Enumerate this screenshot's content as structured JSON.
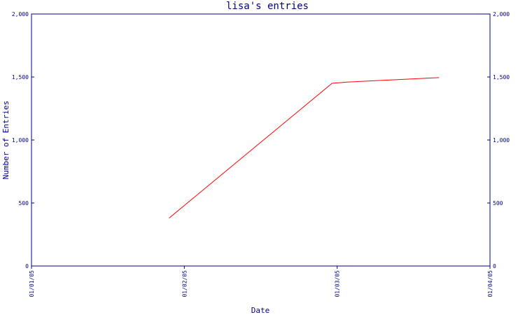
{
  "chart_data": {
    "type": "line",
    "title": "lisa's entries",
    "xlabel": "Date",
    "ylabel": "Number of Entries",
    "x_ticks": [
      "01/01/05",
      "01/02/05",
      "01/03/05",
      "01/04/05"
    ],
    "xlim": [
      "2005-01-01",
      "2005-04-01"
    ],
    "ylim": [
      0,
      2000
    ],
    "y_ticks": [
      "0",
      "500",
      "1,000",
      "1,500",
      "2,000"
    ],
    "y_tick_values": [
      0,
      500,
      1000,
      1500,
      2000
    ],
    "grid": false,
    "series": [
      {
        "x": [
          "2005-01-28",
          "2005-03-01",
          "2005-03-04",
          "2005-03-22"
        ],
        "y": [
          380,
          1450,
          1460,
          1495
        ]
      }
    ],
    "colors": {
      "line": "#ff0000",
      "axis": "#000080",
      "text": "#000080"
    }
  }
}
